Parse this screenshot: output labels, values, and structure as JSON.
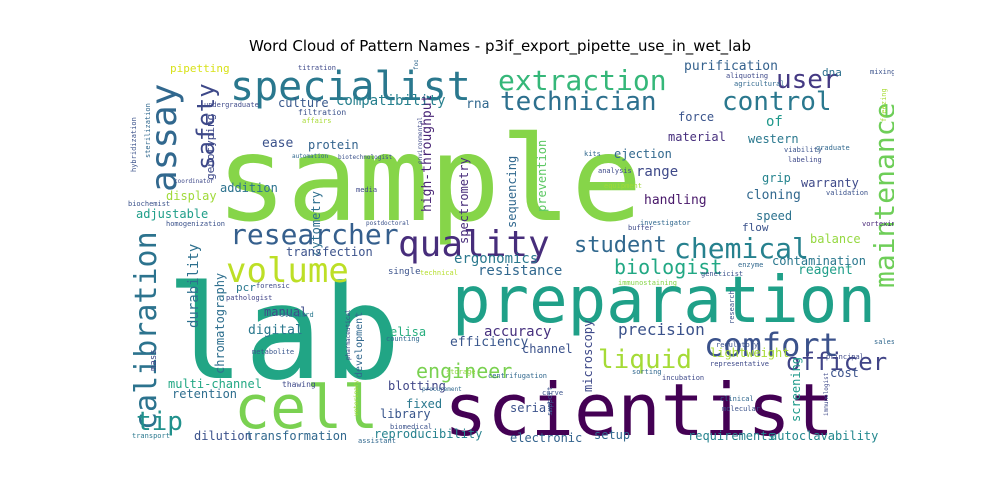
{
  "chart_data": {
    "type": "wordcloud",
    "title": "Word Cloud of Pattern Names - p3if_export_pipette_use_in_wet_lab",
    "words": [
      {
        "text": "sample",
        "weight": 100,
        "color": "#86d549"
      },
      {
        "text": "lab",
        "weight": 90,
        "color": "#21a585"
      },
      {
        "text": "scientist",
        "weight": 60,
        "color": "#440154"
      },
      {
        "text": "preparation",
        "weight": 58,
        "color": "#1fa088"
      },
      {
        "text": "cell",
        "weight": 50,
        "color": "#7ad151"
      },
      {
        "text": "specialist",
        "weight": 38,
        "color": "#2a788e"
      },
      {
        "text": "quality",
        "weight": 32,
        "color": "#472d7b"
      },
      {
        "text": "calibration",
        "weight": 30,
        "color": "#2c738e"
      },
      {
        "text": "assay",
        "weight": 30,
        "color": "#31688e"
      },
      {
        "text": "volume",
        "weight": 30,
        "color": "#bddf26"
      },
      {
        "text": "comfort",
        "weight": 30,
        "color": "#3b528b"
      },
      {
        "text": "extraction",
        "weight": 28,
        "color": "#35b779"
      },
      {
        "text": "maintenance",
        "weight": 28,
        "color": "#6ece58"
      },
      {
        "text": "researcher",
        "weight": 26,
        "color": "#355f8d"
      },
      {
        "text": "chemical",
        "weight": 26,
        "color": "#26818e"
      },
      {
        "text": "technician",
        "weight": 24,
        "color": "#2d708e"
      },
      {
        "text": "control",
        "weight": 24,
        "color": "#2a788e"
      },
      {
        "text": "user",
        "weight": 24,
        "color": "#443983"
      },
      {
        "text": "liquid",
        "weight": 24,
        "color": "#a5db36"
      },
      {
        "text": "tip",
        "weight": 24,
        "color": "#21918c"
      },
      {
        "text": "safety",
        "weight": 22,
        "color": "#3e4989"
      },
      {
        "text": "officer",
        "weight": 22,
        "color": "#414487"
      },
      {
        "text": "student",
        "weight": 20,
        "color": "#31688e"
      },
      {
        "text": "biologist",
        "weight": 18,
        "color": "#22a884"
      },
      {
        "text": "engineer",
        "weight": 18,
        "color": "#7ad151"
      },
      {
        "text": "precision",
        "weight": 14,
        "color": "#3b528b"
      },
      {
        "text": "compatibility",
        "weight": 14,
        "color": "#27808e"
      },
      {
        "text": "resistance",
        "weight": 14,
        "color": "#31688e"
      },
      {
        "text": "ergonomics",
        "weight": 14,
        "color": "#2a788e"
      },
      {
        "text": "accuracy",
        "weight": 13,
        "color": "#46307e"
      },
      {
        "text": "durability",
        "weight": 13,
        "color": "#2d708e"
      },
      {
        "text": "range",
        "weight": 13,
        "color": "#3e4989"
      },
      {
        "text": "handling",
        "weight": 12,
        "color": "#48186a"
      },
      {
        "text": "purification",
        "weight": 12,
        "color": "#34618d"
      },
      {
        "text": "high-throughput",
        "weight": 12,
        "color": "#482475"
      },
      {
        "text": "efficiency",
        "weight": 12,
        "color": "#39568c"
      },
      {
        "text": "ease",
        "weight": 12,
        "color": "#3b528b"
      },
      {
        "text": "rna",
        "weight": 12,
        "color": "#31688e"
      },
      {
        "text": "of",
        "weight": 12,
        "color": "#1f988b"
      },
      {
        "text": "cloning",
        "weight": 12,
        "color": "#31688e"
      },
      {
        "text": "digital",
        "weight": 12,
        "color": "#2a788e"
      },
      {
        "text": "reagent",
        "weight": 12,
        "color": "#1f9e89"
      },
      {
        "text": "elisa",
        "weight": 11,
        "color": "#29af7f"
      },
      {
        "text": "addition",
        "weight": 11,
        "color": "#2c728e"
      },
      {
        "text": "manual",
        "weight": 11,
        "color": "#3e4a89"
      },
      {
        "text": "channel",
        "weight": 11,
        "color": "#3b528b"
      },
      {
        "text": "microscopy",
        "weight": 11,
        "color": "#3e4989"
      },
      {
        "text": "screening",
        "weight": 11,
        "color": "#1f9a8a"
      },
      {
        "text": "multi-channel",
        "weight": 11,
        "color": "#22a884"
      },
      {
        "text": "chromatography",
        "weight": 11,
        "color": "#2e6f8e"
      },
      {
        "text": "reproducibility",
        "weight": 11,
        "color": "#26828e"
      },
      {
        "text": "dilution",
        "weight": 11,
        "color": "#3b528b"
      },
      {
        "text": "transformation",
        "weight": 11,
        "color": "#31688e"
      },
      {
        "text": "electronic",
        "weight": 11,
        "color": "#33638d"
      },
      {
        "text": "requirements",
        "weight": 11,
        "color": "#25838e"
      },
      {
        "text": "autoclavability",
        "weight": 11,
        "color": "#23888e"
      },
      {
        "text": "serial",
        "weight": 10,
        "color": "#3b528b"
      },
      {
        "text": "library",
        "weight": 10,
        "color": "#39568c"
      },
      {
        "text": "blotting",
        "weight": 10,
        "color": "#404688"
      },
      {
        "text": "fixed",
        "weight": 10,
        "color": "#2a788e"
      },
      {
        "text": "retention",
        "weight": 10,
        "color": "#2e6e8e"
      },
      {
        "text": "display",
        "weight": 10,
        "color": "#a0da39"
      },
      {
        "text": "adjustable",
        "weight": 10,
        "color": "#1f9e89"
      },
      {
        "text": "cytometry",
        "weight": 10,
        "color": "#2e6f8e"
      },
      {
        "text": "transfection",
        "weight": 10,
        "color": "#3b528b"
      },
      {
        "text": "spectrometry",
        "weight": 10,
        "color": "#472c7a"
      },
      {
        "text": "sequencing",
        "weight": 10,
        "color": "#31688e"
      },
      {
        "text": "prevention",
        "weight": 10,
        "color": "#5cc863"
      },
      {
        "text": "ejection",
        "weight": 10,
        "color": "#31688e"
      },
      {
        "text": "material",
        "weight": 10,
        "color": "#472f7d"
      },
      {
        "text": "force",
        "weight": 10,
        "color": "#3a548c"
      },
      {
        "text": "western",
        "weight": 10,
        "color": "#2a788e"
      },
      {
        "text": "grip",
        "weight": 10,
        "color": "#25848e"
      },
      {
        "text": "warranty",
        "weight": 10,
        "color": "#3e4989"
      },
      {
        "text": "speed",
        "weight": 10,
        "color": "#2c728e"
      },
      {
        "text": "balance",
        "weight": 10,
        "color": "#95d840"
      },
      {
        "text": "contamination",
        "weight": 10,
        "color": "#2a788e"
      },
      {
        "text": "lightweight",
        "weight": 10,
        "color": "#a8db34"
      },
      {
        "text": "cost",
        "weight": 10,
        "color": "#3b528b"
      },
      {
        "text": "setup",
        "weight": 10,
        "color": "#31688e"
      },
      {
        "text": "culture",
        "weight": 10,
        "color": "#38588c"
      },
      {
        "text": "protein",
        "weight": 10,
        "color": "#33638d"
      },
      {
        "text": "genotyping",
        "weight": 9,
        "color": "#3e4989"
      },
      {
        "text": "pcr",
        "weight": 9,
        "color": "#2a788e"
      },
      {
        "text": "pipetting",
        "weight": 9,
        "color": "#d8e219"
      },
      {
        "text": "flow",
        "weight": 9,
        "color": "#3b528b"
      },
      {
        "text": "dna",
        "weight": 9,
        "color": "#2d708e"
      },
      {
        "text": "mass",
        "weight": 8,
        "color": "#3e4989"
      },
      {
        "text": "development",
        "weight": 8,
        "color": "#31688e"
      },
      {
        "text": "thawing",
        "weight": 7,
        "color": "#3e4989"
      },
      {
        "text": "vortexing",
        "weight": 7,
        "color": "#482878"
      },
      {
        "text": "metabolite",
        "weight": 7,
        "color": "#39568c"
      },
      {
        "text": "pathologist",
        "weight": 7,
        "color": "#414487"
      },
      {
        "text": "homogenization",
        "weight": 7,
        "color": "#3b528b"
      },
      {
        "text": "buffer",
        "weight": 7,
        "color": "#3e4989"
      },
      {
        "text": "immunostaining",
        "weight": 6,
        "color": "#86d549"
      },
      {
        "text": "geneticist",
        "weight": 6,
        "color": "#3b528b"
      },
      {
        "text": "enzyme",
        "weight": 6,
        "color": "#31688e"
      },
      {
        "text": "postdoctoral",
        "weight": 6,
        "color": "#3b528b"
      },
      {
        "text": "media",
        "weight": 6,
        "color": "#3e4989"
      },
      {
        "text": "counting",
        "weight": 6,
        "color": "#31688e"
      },
      {
        "text": "single",
        "weight": 7,
        "color": "#3b528b"
      },
      {
        "text": "technical",
        "weight": 6,
        "color": "#b5de2b"
      },
      {
        "text": "forensic",
        "weight": 6,
        "color": "#3e4989"
      },
      {
        "text": "standard",
        "weight": 6,
        "color": "#2a788e"
      },
      {
        "text": "incubation",
        "weight": 6,
        "color": "#3e4989"
      },
      {
        "text": "sorting",
        "weight": 6,
        "color": "#31688e"
      },
      {
        "text": "storage",
        "weight": 6,
        "color": "#8fd744"
      },
      {
        "text": "curve",
        "weight": 6,
        "color": "#3b528b"
      },
      {
        "text": "centrifugation",
        "weight": 6,
        "color": "#31688e"
      },
      {
        "text": "regulatory",
        "weight": 6,
        "color": "#3b528b"
      },
      {
        "text": "representative",
        "weight": 6,
        "color": "#3e4989"
      },
      {
        "text": "clinical",
        "weight": 6,
        "color": "#31688e"
      },
      {
        "text": "molecular",
        "weight": 6,
        "color": "#3b528b"
      },
      {
        "text": "principal",
        "weight": 6,
        "color": "#3e4989"
      },
      {
        "text": "sales",
        "weight": 6,
        "color": "#31688e"
      },
      {
        "text": "support",
        "weight": 6,
        "color": "#3b528b"
      },
      {
        "text": "assistant",
        "weight": 6,
        "color": "#31688e"
      },
      {
        "text": "biomedical",
        "weight": 6,
        "color": "#3b528b"
      },
      {
        "text": "veterinary",
        "weight": 6,
        "color": "#a0da39"
      },
      {
        "text": "pharmaceutical",
        "weight": 6,
        "color": "#3e4989"
      },
      {
        "text": "procurement",
        "weight": 6,
        "color": "#31688e"
      },
      {
        "text": "transport",
        "weight": 6,
        "color": "#2a788e"
      },
      {
        "text": "biochemist",
        "weight": 6,
        "color": "#3b528b"
      },
      {
        "text": "titration",
        "weight": 6,
        "color": "#3e4989"
      },
      {
        "text": "food",
        "weight": 6,
        "color": "#31688e"
      },
      {
        "text": "filtration",
        "weight": 6,
        "color": "#3b528b"
      },
      {
        "text": "affairs",
        "weight": 6,
        "color": "#a8db34"
      },
      {
        "text": "undergraduate",
        "weight": 6,
        "color": "#3e4989"
      },
      {
        "text": "automation",
        "weight": 6,
        "color": "#31688e"
      },
      {
        "text": "biotechnologist",
        "weight": 6,
        "color": "#3b528b"
      },
      {
        "text": "coordinator",
        "weight": 6,
        "color": "#3e4989"
      },
      {
        "text": "sterilization",
        "weight": 6,
        "color": "#31688e"
      },
      {
        "text": "hybridization",
        "weight": 6,
        "color": "#3b528b"
      },
      {
        "text": "analysis",
        "weight": 6,
        "color": "#3e4989"
      },
      {
        "text": "equipment",
        "weight": 6,
        "color": "#a0da39"
      },
      {
        "text": "investigator",
        "weight": 6,
        "color": "#31688e"
      },
      {
        "text": "viability",
        "weight": 6,
        "color": "#3b528b"
      },
      {
        "text": "labeling",
        "weight": 6,
        "color": "#3e4989"
      },
      {
        "text": "graduate",
        "weight": 6,
        "color": "#31688e"
      },
      {
        "text": "validation",
        "weight": 6,
        "color": "#3b528b"
      },
      {
        "text": "aliquoting",
        "weight": 6,
        "color": "#3e4989"
      },
      {
        "text": "agricultural",
        "weight": 6,
        "color": "#31688e"
      },
      {
        "text": "mixing",
        "weight": 6,
        "color": "#3b528b"
      },
      {
        "text": "freezing",
        "weight": 6,
        "color": "#a8db34"
      },
      {
        "text": "environmental",
        "weight": 6,
        "color": "#3e4989"
      },
      {
        "text": "kits",
        "weight": 6,
        "color": "#31688e"
      },
      {
        "text": "research",
        "weight": 6,
        "color": "#3b528b"
      },
      {
        "text": "immunologist",
        "weight": 6,
        "color": "#3e4989"
      }
    ]
  }
}
